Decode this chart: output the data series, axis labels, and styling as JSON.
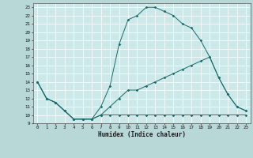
{
  "title": "",
  "xlabel": "Humidex (Indice chaleur)",
  "xlim": [
    -0.5,
    23.5
  ],
  "ylim": [
    9,
    23.5
  ],
  "yticks": [
    9,
    10,
    11,
    12,
    13,
    14,
    15,
    16,
    17,
    18,
    19,
    20,
    21,
    22,
    23
  ],
  "xticks": [
    0,
    1,
    2,
    3,
    4,
    5,
    6,
    7,
    8,
    9,
    10,
    11,
    12,
    13,
    14,
    15,
    16,
    17,
    18,
    19,
    20,
    21,
    22,
    23
  ],
  "bg_color": "#b8d8d8",
  "plot_bg_color": "#cce8e8",
  "grid_color": "#ffffff",
  "line_color": "#1a6b6b",
  "line1_x": [
    0,
    1,
    2,
    3,
    4,
    5,
    6,
    7,
    8,
    9,
    10,
    11,
    12,
    13,
    14,
    15,
    16,
    17,
    18,
    19,
    20,
    21,
    22,
    23
  ],
  "line1_y": [
    14,
    12,
    11.5,
    10.5,
    9.5,
    9.5,
    9.5,
    10,
    10,
    10,
    10,
    10,
    10,
    10,
    10,
    10,
    10,
    10,
    10,
    10,
    10,
    10,
    10,
    10
  ],
  "line2_x": [
    0,
    1,
    2,
    3,
    4,
    5,
    6,
    7,
    8,
    9,
    10,
    11,
    12,
    13,
    14,
    15,
    16,
    17,
    18,
    19,
    20,
    21,
    22,
    23
  ],
  "line2_y": [
    14,
    12,
    11.5,
    10.5,
    9.5,
    9.5,
    9.5,
    11,
    13.5,
    18.5,
    21.5,
    22,
    23,
    23,
    22.5,
    22,
    21,
    20.5,
    19,
    17,
    14.5,
    12.5,
    11,
    10.5
  ],
  "line3_x": [
    0,
    1,
    2,
    3,
    4,
    5,
    6,
    7,
    8,
    9,
    10,
    11,
    12,
    13,
    14,
    15,
    16,
    17,
    18,
    19,
    20,
    21,
    22,
    23
  ],
  "line3_y": [
    14,
    12,
    11.5,
    10.5,
    9.5,
    9.5,
    9.5,
    10,
    11,
    12,
    13,
    13,
    13.5,
    14,
    14.5,
    15,
    15.5,
    16,
    16.5,
    17,
    14.5,
    12.5,
    11,
    10.5
  ]
}
